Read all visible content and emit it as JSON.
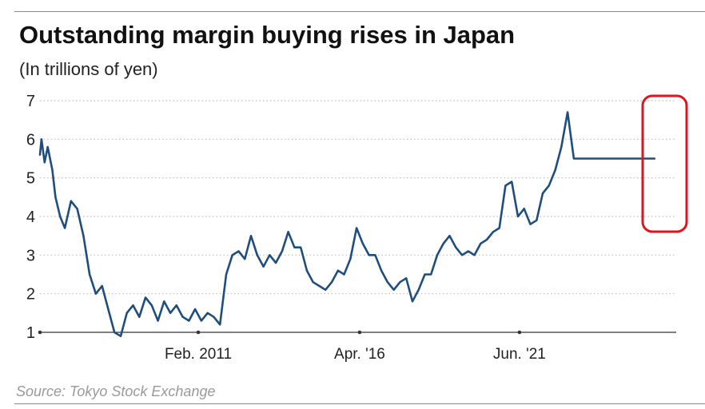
{
  "header": {
    "title": "Outstanding margin buying rises in Japan",
    "subtitle": "(In trillions of yen)"
  },
  "footer": {
    "source": "Source: Tokyo Stock Exchange"
  },
  "colors": {
    "line": "#1f4e7e",
    "grid": "#bdbdbd",
    "axis": "#333333",
    "highlight": "#e0141e"
  },
  "chart_data": {
    "type": "line",
    "title": "Outstanding margin buying rises in Japan",
    "ylabel": "(In trillions of yen)",
    "xlabel": "",
    "x_tick_labels": [
      "Feb. 2011",
      "Apr. '16",
      "Jun. '21"
    ],
    "x_tick_positions": [
      2011.1,
      2016.3,
      2021.45
    ],
    "xlim": [
      2006.0,
      2026.5
    ],
    "ylim": [
      1,
      7
    ],
    "y_ticks": [
      1,
      2,
      3,
      4,
      5,
      6,
      7
    ],
    "grid": "horizontal dotted",
    "annotation": "red rounded rectangle highlighting the latest surge",
    "x": [
      2006.0,
      2006.05,
      2006.15,
      2006.25,
      2006.4,
      2006.5,
      2006.65,
      2006.8,
      2007.0,
      2007.2,
      2007.4,
      2007.6,
      2007.8,
      2008.0,
      2008.2,
      2008.4,
      2008.6,
      2008.8,
      2009.0,
      2009.2,
      2009.4,
      2009.6,
      2009.8,
      2010.0,
      2010.2,
      2010.4,
      2010.6,
      2010.8,
      2011.0,
      2011.2,
      2011.4,
      2011.6,
      2011.8,
      2012.0,
      2012.2,
      2012.4,
      2012.6,
      2012.8,
      2013.0,
      2013.2,
      2013.4,
      2013.6,
      2013.8,
      2014.0,
      2014.2,
      2014.4,
      2014.6,
      2014.8,
      2015.0,
      2015.2,
      2015.4,
      2015.6,
      2015.8,
      2016.0,
      2016.2,
      2016.4,
      2016.6,
      2016.8,
      2017.0,
      2017.2,
      2017.4,
      2017.6,
      2017.8,
      2018.0,
      2018.2,
      2018.4,
      2018.6,
      2018.8,
      2019.0,
      2019.2,
      2019.4,
      2019.6,
      2019.8,
      2020.0,
      2020.2,
      2020.4,
      2020.6,
      2020.8,
      2021.0,
      2021.2,
      2021.4,
      2021.6,
      2021.8,
      2022.0,
      2022.2,
      2022.4,
      2022.6,
      2022.8,
      2023.0,
      2023.2,
      2023.4,
      2023.6,
      2023.8,
      2024.0,
      2024.2,
      2024.4,
      2024.6,
      2024.8,
      2025.0,
      2025.2,
      2025.4,
      2025.5,
      2025.6,
      2025.7,
      2025.8
    ],
    "values": [
      5.6,
      6.0,
      5.4,
      5.8,
      5.2,
      4.5,
      4.0,
      3.7,
      4.4,
      4.2,
      3.5,
      2.5,
      2.0,
      2.2,
      1.6,
      1.0,
      0.9,
      1.5,
      1.7,
      1.4,
      1.9,
      1.7,
      1.3,
      1.8,
      1.5,
      1.7,
      1.4,
      1.3,
      1.6,
      1.3,
      1.5,
      1.4,
      1.2,
      2.5,
      3.0,
      3.1,
      2.9,
      3.5,
      3.0,
      2.7,
      3.0,
      2.8,
      3.1,
      3.6,
      3.2,
      3.2,
      2.6,
      2.3,
      2.2,
      2.1,
      2.3,
      2.6,
      2.5,
      2.9,
      3.7,
      3.3,
      3.0,
      3.0,
      2.6,
      2.3,
      2.1,
      2.3,
      2.4,
      1.8,
      2.1,
      2.5,
      2.5,
      3.0,
      3.3,
      3.5,
      3.2,
      3.0,
      3.1,
      3.0,
      3.3,
      3.4,
      3.6,
      3.7,
      4.8,
      4.9,
      4.0,
      4.2,
      3.8,
      3.9,
      4.6,
      4.8,
      5.2,
      5.8,
      6.7,
      5.5,
      5.5,
      5.5,
      5.5,
      5.5,
      5.5,
      5.5,
      5.5,
      5.5,
      5.5,
      5.5,
      5.5,
      5.5,
      5.5,
      5.5,
      5.5
    ]
  }
}
